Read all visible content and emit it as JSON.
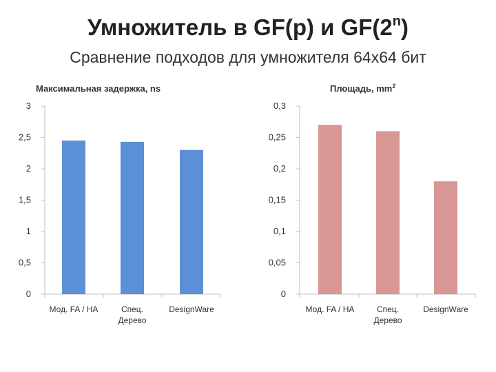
{
  "slide": {
    "title_main": "Умножитель в GF(p) и GF(2",
    "title_sup": "n",
    "title_end": ")",
    "subtitle": "Сравнение подходов для умножителя 64x64 бит"
  },
  "chart_data": [
    {
      "type": "bar",
      "title": "Максимальная задержка, ns",
      "categories": [
        [
          "Мод. FA / HA"
        ],
        [
          "Спец.",
          "Дерево"
        ],
        [
          "DesignWare"
        ]
      ],
      "values": [
        2.45,
        2.43,
        2.3
      ],
      "ylim": [
        0,
        3
      ],
      "yticks": [
        "0",
        "0,5",
        "1",
        "1,5",
        "2",
        "2,5",
        "3"
      ],
      "tick_step": 0.5,
      "bar_color": "#5b8fd6",
      "grid": false,
      "legend": "none"
    },
    {
      "type": "bar",
      "title_main": "Площадь, mm",
      "title_sup": "2",
      "categories": [
        [
          "Мод. FA / HA"
        ],
        [
          "Спец.",
          "Дерево"
        ],
        [
          "DesignWare"
        ]
      ],
      "values": [
        0.27,
        0.26,
        0.18
      ],
      "ylim": [
        0,
        0.3
      ],
      "yticks": [
        "0",
        "0,05",
        "0,1",
        "0,15",
        "0,2",
        "0,25",
        "0,3"
      ],
      "tick_step": 0.05,
      "bar_color": "#d89694",
      "grid": false,
      "legend": "none"
    }
  ]
}
